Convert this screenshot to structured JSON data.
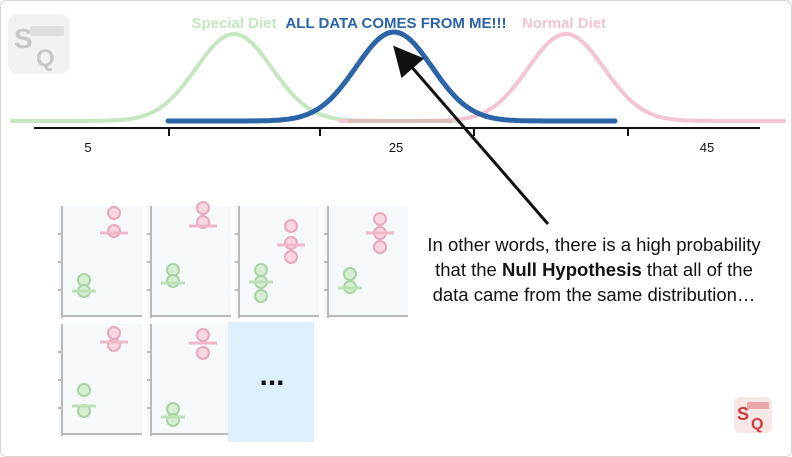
{
  "labels": {
    "special": "Special Diet",
    "all_data": "ALL DATA COMES FROM ME!!!",
    "normal": "Normal Diet"
  },
  "axis": {
    "ticks": [
      "5",
      "25",
      "45"
    ]
  },
  "caption": {
    "part1": "In other words, there is a high probability that the ",
    "bold": "Null Hypothesis",
    "part2": " that all of the data came from the same distribution…"
  },
  "ellipsis": "...",
  "colors": {
    "special": "#c5e6c0",
    "all_data": "#2b65a8",
    "normal": "#f3c4d3",
    "panel_bg": "#f5f9fc",
    "panel_blank": "#ddeffa",
    "green_fill": "#d6efd2",
    "green_stroke": "#a9d3a3",
    "pink_fill": "#f9d6e0",
    "pink_stroke": "#e8a9bd"
  },
  "logos": [
    "logo-big",
    "logo-small"
  ]
}
